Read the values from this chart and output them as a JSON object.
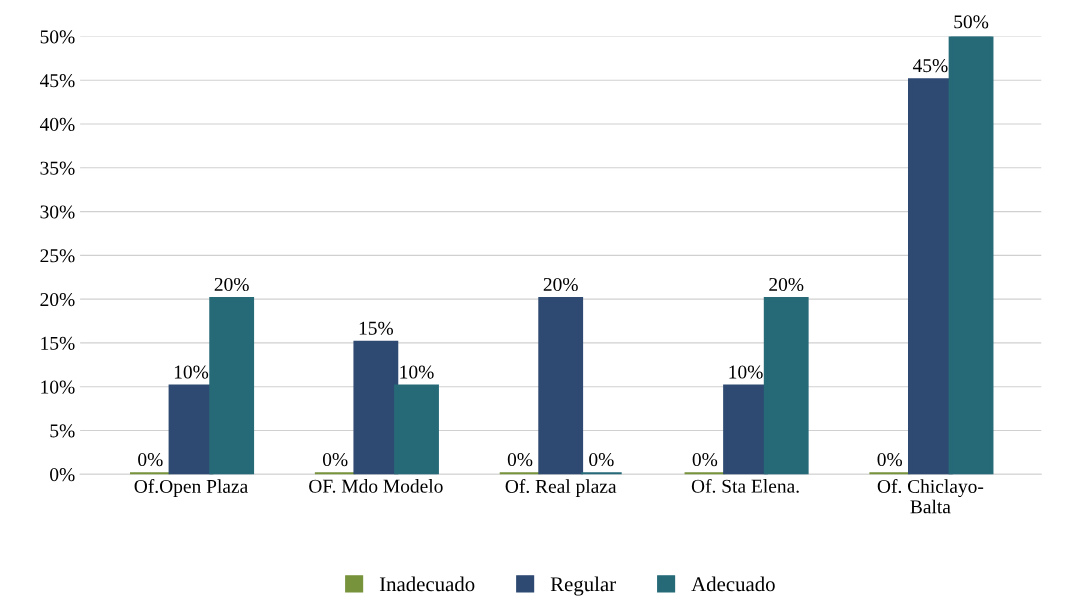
{
  "chart_data": {
    "type": "bar",
    "categories": [
      "Of.Open Plaza",
      "OF. Mdo Modelo",
      "Of. Real plaza",
      "Of. Sta Elena.",
      "Of. Chiclayo-\nBalta"
    ],
    "series": [
      {
        "name": "Inadecuado",
        "color": "#77933c",
        "values": [
          0,
          0,
          0,
          0,
          0
        ],
        "value_labels": [
          "0%",
          "0%",
          "0%",
          "0%",
          "0%"
        ]
      },
      {
        "name": "Regular",
        "color": "#2e4a72",
        "values": [
          10,
          15,
          20,
          10,
          45
        ],
        "value_labels": [
          "10%",
          "15%",
          "20%",
          "10%",
          "45%"
        ]
      },
      {
        "name": "Adecuado",
        "color": "#266a78",
        "values": [
          20,
          10,
          0,
          20,
          50
        ],
        "value_labels": [
          "20%",
          "10%",
          "0%",
          "20%",
          "50%"
        ]
      }
    ],
    "ylim": [
      0,
      50
    ],
    "yticks": [
      {
        "value": 0,
        "label": "0%"
      },
      {
        "value": 5,
        "label": "5%"
      },
      {
        "value": 10,
        "label": "10%"
      },
      {
        "value": 15,
        "label": "15%"
      },
      {
        "value": 20,
        "label": "20%"
      },
      {
        "value": 25,
        "label": "25%"
      },
      {
        "value": 30,
        "label": "30%"
      },
      {
        "value": 35,
        "label": "35%"
      },
      {
        "value": 40,
        "label": "40%"
      },
      {
        "value": 45,
        "label": "45%"
      },
      {
        "value": 50,
        "label": "50%"
      }
    ],
    "grid": "y",
    "legend": "bottom"
  }
}
